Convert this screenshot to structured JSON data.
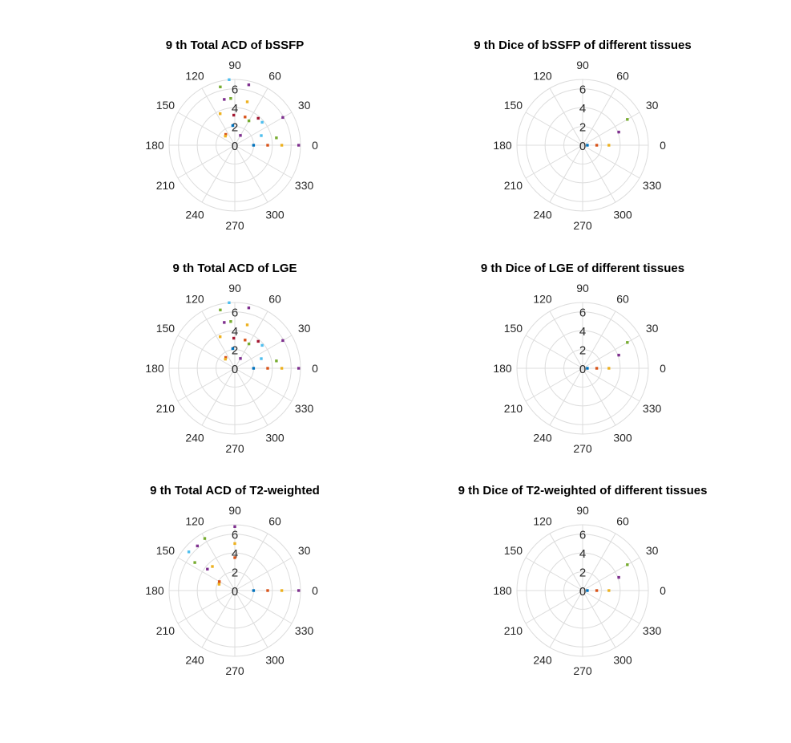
{
  "figure": {
    "background": "#ffffff"
  },
  "chart_data": [
    {
      "type": "scatter",
      "projection": "polar",
      "title": "9 th Total ACD of bSSFP",
      "theta_ticks": [
        "0",
        "30",
        "60",
        "90",
        "120",
        "150",
        "180",
        "210",
        "240",
        "270",
        "300",
        "330"
      ],
      "r_ticks": [
        "0",
        "2",
        "4",
        "6"
      ],
      "rlim": [
        0,
        7
      ],
      "grid": true,
      "points": [
        {
          "theta": 0,
          "r": 2,
          "color": "#0072bd"
        },
        {
          "theta": 0,
          "r": 3.5,
          "color": "#d95319"
        },
        {
          "theta": 0,
          "r": 5,
          "color": "#edb120"
        },
        {
          "theta": 0,
          "r": 6.8,
          "color": "#7e2f8e"
        },
        {
          "theta": 10,
          "r": 4.5,
          "color": "#77ac30"
        },
        {
          "theta": 20,
          "r": 3,
          "color": "#4dbeee"
        },
        {
          "theta": 30,
          "r": 5.9,
          "color": "#7e2f8e"
        },
        {
          "theta": 40,
          "r": 3.8,
          "color": "#4dbeee"
        },
        {
          "theta": 49,
          "r": 3.8,
          "color": "#a2142f"
        },
        {
          "theta": 60,
          "r": 1.2,
          "color": "#7e2f8e"
        },
        {
          "theta": 60,
          "r": 3,
          "color": "#77ac30"
        },
        {
          "theta": 70,
          "r": 3.2,
          "color": "#d95319"
        },
        {
          "theta": 74,
          "r": 4.8,
          "color": "#edb120"
        },
        {
          "theta": 77,
          "r": 6.6,
          "color": "#7e2f8e"
        },
        {
          "theta": 92,
          "r": 3.2,
          "color": "#a2142f"
        },
        {
          "theta": 95,
          "r": 5,
          "color": "#77ac30"
        },
        {
          "theta": 95,
          "r": 7,
          "color": "#4dbeee"
        },
        {
          "theta": 96,
          "r": 2.1,
          "color": "#0072bd"
        },
        {
          "theta": 103,
          "r": 5,
          "color": "#7e2f8e"
        },
        {
          "theta": 104,
          "r": 6.4,
          "color": "#77ac30"
        },
        {
          "theta": 115,
          "r": 3.7,
          "color": "#edb120"
        },
        {
          "theta": 130,
          "r": 1.5,
          "color": "#d95319"
        },
        {
          "theta": 136,
          "r": 1.4,
          "color": "#edb120"
        }
      ]
    },
    {
      "type": "scatter",
      "projection": "polar",
      "title": "9 th Dice of bSSFP of different tissues",
      "theta_ticks": [
        "0",
        "30",
        "60",
        "90",
        "120",
        "150",
        "180",
        "210",
        "240",
        "270",
        "300",
        "330"
      ],
      "r_ticks": [
        "0",
        "2",
        "4",
        "6"
      ],
      "rlim": [
        0,
        7
      ],
      "grid": true,
      "points": [
        {
          "theta": 0,
          "r": 0.5,
          "color": "#0072bd"
        },
        {
          "theta": 0,
          "r": 1.5,
          "color": "#d95319"
        },
        {
          "theta": 0,
          "r": 2.8,
          "color": "#edb120"
        },
        {
          "theta": 20,
          "r": 4.1,
          "color": "#7e2f8e"
        },
        {
          "theta": 30,
          "r": 5.5,
          "color": "#77ac30"
        }
      ]
    },
    {
      "type": "scatter",
      "projection": "polar",
      "title": "9 th Total ACD of LGE",
      "theta_ticks": [
        "0",
        "30",
        "60",
        "90",
        "120",
        "150",
        "180",
        "210",
        "240",
        "270",
        "300",
        "330"
      ],
      "r_ticks": [
        "0",
        "2",
        "4",
        "6"
      ],
      "rlim": [
        0,
        7
      ],
      "grid": true,
      "points": [
        {
          "theta": 0,
          "r": 2,
          "color": "#0072bd"
        },
        {
          "theta": 0,
          "r": 3.5,
          "color": "#d95319"
        },
        {
          "theta": 0,
          "r": 5,
          "color": "#edb120"
        },
        {
          "theta": 0,
          "r": 6.8,
          "color": "#7e2f8e"
        },
        {
          "theta": 10,
          "r": 4.5,
          "color": "#77ac30"
        },
        {
          "theta": 20,
          "r": 3,
          "color": "#4dbeee"
        },
        {
          "theta": 30,
          "r": 5.9,
          "color": "#7e2f8e"
        },
        {
          "theta": 40,
          "r": 3.8,
          "color": "#4dbeee"
        },
        {
          "theta": 49,
          "r": 3.8,
          "color": "#a2142f"
        },
        {
          "theta": 60,
          "r": 1.2,
          "color": "#7e2f8e"
        },
        {
          "theta": 60,
          "r": 3,
          "color": "#77ac30"
        },
        {
          "theta": 70,
          "r": 3.2,
          "color": "#d95319"
        },
        {
          "theta": 74,
          "r": 4.8,
          "color": "#edb120"
        },
        {
          "theta": 77,
          "r": 6.6,
          "color": "#7e2f8e"
        },
        {
          "theta": 92,
          "r": 3.2,
          "color": "#a2142f"
        },
        {
          "theta": 95,
          "r": 5,
          "color": "#77ac30"
        },
        {
          "theta": 95,
          "r": 7,
          "color": "#4dbeee"
        },
        {
          "theta": 96,
          "r": 2.1,
          "color": "#0072bd"
        },
        {
          "theta": 103,
          "r": 5,
          "color": "#7e2f8e"
        },
        {
          "theta": 104,
          "r": 6.4,
          "color": "#77ac30"
        },
        {
          "theta": 115,
          "r": 3.7,
          "color": "#edb120"
        },
        {
          "theta": 130,
          "r": 1.5,
          "color": "#d95319"
        },
        {
          "theta": 136,
          "r": 1.4,
          "color": "#edb120"
        }
      ]
    },
    {
      "type": "scatter",
      "projection": "polar",
      "title": "9 th Dice of LGE of different tissues",
      "theta_ticks": [
        "0",
        "30",
        "60",
        "90",
        "120",
        "150",
        "180",
        "210",
        "240",
        "270",
        "300",
        "330"
      ],
      "r_ticks": [
        "0",
        "2",
        "4",
        "6"
      ],
      "rlim": [
        0,
        7
      ],
      "grid": true,
      "points": [
        {
          "theta": 0,
          "r": 0.5,
          "color": "#0072bd"
        },
        {
          "theta": 0,
          "r": 1.5,
          "color": "#d95319"
        },
        {
          "theta": 0,
          "r": 2.8,
          "color": "#edb120"
        },
        {
          "theta": 20,
          "r": 4.1,
          "color": "#7e2f8e"
        },
        {
          "theta": 30,
          "r": 5.5,
          "color": "#77ac30"
        }
      ]
    },
    {
      "type": "scatter",
      "projection": "polar",
      "title": "9 th Total ACD of T2-weighted",
      "theta_ticks": [
        "0",
        "30",
        "60",
        "90",
        "120",
        "150",
        "180",
        "210",
        "240",
        "270",
        "300",
        "330"
      ],
      "r_ticks": [
        "0",
        "2",
        "4",
        "6"
      ],
      "rlim": [
        0,
        7
      ],
      "grid": true,
      "points": [
        {
          "theta": 0,
          "r": 2,
          "color": "#0072bd"
        },
        {
          "theta": 0,
          "r": 3.5,
          "color": "#d95319"
        },
        {
          "theta": 0,
          "r": 5,
          "color": "#edb120"
        },
        {
          "theta": 0,
          "r": 6.8,
          "color": "#7e2f8e"
        },
        {
          "theta": 90,
          "r": 3.5,
          "color": "#d95319"
        },
        {
          "theta": 90,
          "r": 5,
          "color": "#edb120"
        },
        {
          "theta": 90,
          "r": 6.8,
          "color": "#7e2f8e"
        },
        {
          "theta": 120,
          "r": 6.4,
          "color": "#77ac30"
        },
        {
          "theta": 130,
          "r": 6.2,
          "color": "#7e2f8e"
        },
        {
          "theta": 133,
          "r": 3.5,
          "color": "#edb120"
        },
        {
          "theta": 140,
          "r": 6.4,
          "color": "#4dbeee"
        },
        {
          "theta": 142,
          "r": 3.7,
          "color": "#7e2f8e"
        },
        {
          "theta": 145,
          "r": 5.2,
          "color": "#77ac30"
        },
        {
          "theta": 150,
          "r": 1.9,
          "color": "#d95319"
        },
        {
          "theta": 158,
          "r": 1.8,
          "color": "#edb120"
        }
      ]
    },
    {
      "type": "scatter",
      "projection": "polar",
      "title": "9 th Dice of T2-weighted of different tissues",
      "theta_ticks": [
        "0",
        "30",
        "60",
        "90",
        "120",
        "150",
        "180",
        "210",
        "240",
        "270",
        "300",
        "330"
      ],
      "r_ticks": [
        "0",
        "2",
        "4",
        "6"
      ],
      "rlim": [
        0,
        7
      ],
      "grid": true,
      "points": [
        {
          "theta": 0,
          "r": 0.5,
          "color": "#0072bd"
        },
        {
          "theta": 0,
          "r": 1.5,
          "color": "#d95319"
        },
        {
          "theta": 0,
          "r": 2.8,
          "color": "#edb120"
        },
        {
          "theta": 20,
          "r": 4.1,
          "color": "#7e2f8e"
        },
        {
          "theta": 30,
          "r": 5.5,
          "color": "#77ac30"
        }
      ]
    }
  ]
}
